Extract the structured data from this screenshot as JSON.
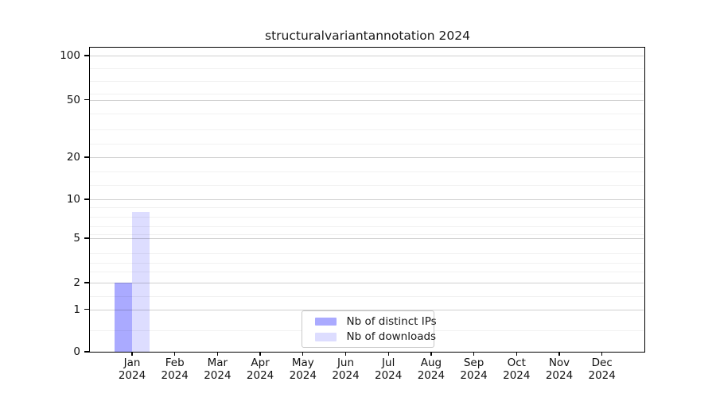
{
  "chart_data": {
    "type": "bar",
    "title": "structuralvariantannotation 2024",
    "categories": [
      {
        "month": "Jan",
        "year": "2024"
      },
      {
        "month": "Feb",
        "year": "2024"
      },
      {
        "month": "Mar",
        "year": "2024"
      },
      {
        "month": "Apr",
        "year": "2024"
      },
      {
        "month": "May",
        "year": "2024"
      },
      {
        "month": "Jun",
        "year": "2024"
      },
      {
        "month": "Jul",
        "year": "2024"
      },
      {
        "month": "Aug",
        "year": "2024"
      },
      {
        "month": "Sep",
        "year": "2024"
      },
      {
        "month": "Oct",
        "year": "2024"
      },
      {
        "month": "Nov",
        "year": "2024"
      },
      {
        "month": "Dec",
        "year": "2024"
      }
    ],
    "series": [
      {
        "name": "Nb of distinct IPs",
        "color": "#aaaaff",
        "values": [
          2,
          0,
          0,
          0,
          0,
          0,
          0,
          0,
          0,
          0,
          0,
          0
        ]
      },
      {
        "name": "Nb of downloads",
        "color": "#ddddff",
        "values": [
          8,
          0,
          0,
          0,
          0,
          0,
          0,
          0,
          0,
          0,
          0,
          0
        ]
      }
    ],
    "y_axis": {
      "ticks": [
        0,
        1,
        2,
        5,
        10,
        20,
        50,
        100
      ],
      "scale": "log-like",
      "range": [
        0,
        110
      ]
    },
    "grid": "horizontal",
    "legend_position": "bottom-center"
  }
}
